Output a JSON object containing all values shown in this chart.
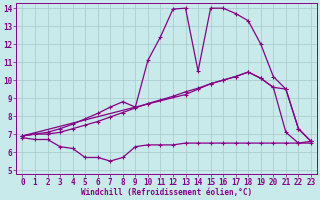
{
  "xlabel": "Windchill (Refroidissement éolien,°C)",
  "xlim": [
    -0.5,
    23.5
  ],
  "ylim": [
    4.8,
    14.3
  ],
  "yticks": [
    5,
    6,
    7,
    8,
    9,
    10,
    11,
    12,
    13,
    14
  ],
  "xticks": [
    0,
    1,
    2,
    3,
    4,
    5,
    6,
    7,
    8,
    9,
    10,
    11,
    12,
    13,
    14,
    15,
    16,
    17,
    18,
    19,
    20,
    21,
    22,
    23
  ],
  "bg_color": "#c8eaea",
  "line_color": "#880088",
  "grid_color": "#a8c8c8",
  "line1_x": [
    0,
    1,
    2,
    3,
    4,
    5,
    6,
    7,
    8,
    9,
    10,
    11,
    12,
    13,
    14,
    15,
    16,
    17,
    18,
    19,
    20,
    21,
    22,
    23
  ],
  "line1_y": [
    6.8,
    6.7,
    6.7,
    6.3,
    6.2,
    5.7,
    5.7,
    5.5,
    5.7,
    6.3,
    6.4,
    6.4,
    6.4,
    6.5,
    6.5,
    6.5,
    6.5,
    6.5,
    6.5,
    6.5,
    6.5,
    6.5,
    6.5,
    6.5
  ],
  "line2_x": [
    0,
    1,
    2,
    3,
    4,
    5,
    6,
    7,
    8,
    9,
    10,
    11,
    12,
    13,
    14,
    15,
    16,
    17,
    18,
    19,
    20,
    21,
    22,
    23
  ],
  "line2_y": [
    6.9,
    7.0,
    7.0,
    7.1,
    7.3,
    7.5,
    7.7,
    7.95,
    8.2,
    8.45,
    8.7,
    8.9,
    9.1,
    9.35,
    9.55,
    9.8,
    10.0,
    10.2,
    10.45,
    10.1,
    9.6,
    7.1,
    6.5,
    6.6
  ],
  "line3_x": [
    0,
    1,
    2,
    3,
    4,
    5,
    6,
    7,
    8,
    9,
    10,
    11,
    12,
    13,
    14,
    15,
    16,
    17,
    18,
    19,
    20,
    21,
    22,
    23
  ],
  "line3_y": [
    6.9,
    7.0,
    7.1,
    7.3,
    7.55,
    7.85,
    8.15,
    8.5,
    8.8,
    8.5,
    11.1,
    12.4,
    13.95,
    14.0,
    10.5,
    14.0,
    14.0,
    13.7,
    13.3,
    12.0,
    10.2,
    9.5,
    7.3,
    6.6
  ],
  "line4_x": [
    0,
    9,
    13,
    14,
    15,
    16,
    17,
    18,
    19,
    20,
    21,
    22,
    23
  ],
  "line4_y": [
    6.9,
    8.5,
    9.2,
    9.5,
    9.8,
    10.0,
    10.2,
    10.45,
    10.1,
    9.6,
    9.5,
    7.3,
    6.6
  ]
}
